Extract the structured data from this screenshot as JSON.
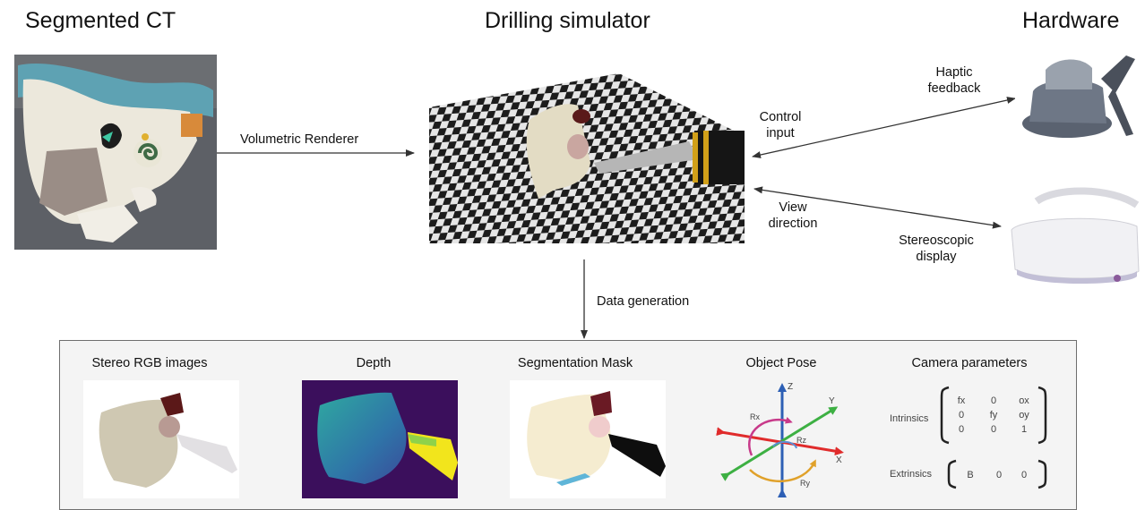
{
  "titles": {
    "left": "Segmented CT",
    "middle": "Drilling simulator",
    "right": "Hardware"
  },
  "arrows": {
    "volumetric_renderer": "Volumetric Renderer",
    "haptic_feedback": [
      "Haptic",
      "feedback"
    ],
    "control_input": [
      "Control",
      "input"
    ],
    "view_direction": [
      "View",
      "direction"
    ],
    "stereoscopic_display": [
      "Stereoscopic",
      "display"
    ],
    "data_generation": "Data generation"
  },
  "outputs": {
    "stereo_rgb": "Stereo RGB images",
    "depth": "Depth",
    "segmentation": "Segmentation Mask",
    "object_pose": "Object Pose",
    "camera_parameters": "Camera parameters"
  },
  "pose_axes": {
    "z": "Z",
    "y": "Y",
    "x": "X",
    "rx": "Rx",
    "ry": "Ry",
    "rz": "Rz"
  },
  "camera": {
    "intrinsics_label": "Intrinsics",
    "intrinsics_rows": [
      [
        "fx",
        "0",
        "ox"
      ],
      [
        "0",
        "fy",
        "oy"
      ],
      [
        "0",
        "0",
        "1"
      ]
    ],
    "extrinsics_label": "Extrinsics",
    "extrinsics_row": [
      "B",
      "0",
      "0"
    ]
  },
  "colors": {
    "z_axis": "#2d5fb5",
    "y_axis": "#3db043",
    "x_axis": "#e02b2b",
    "rx": "#c83a8a",
    "ry": "#e0a12a",
    "rz": "#5b8fd6"
  }
}
